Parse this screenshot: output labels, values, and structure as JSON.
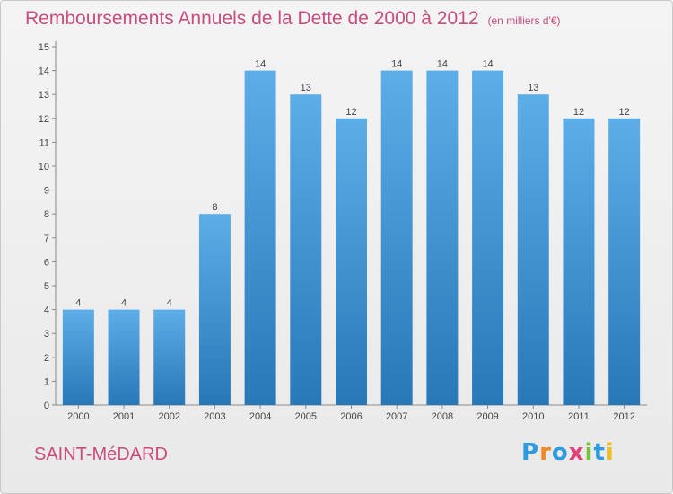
{
  "title": "Remboursements Annuels de la Dette de 2000 à 2012",
  "unit_note": "(en milliers d'€)",
  "commune": "SAINT-MéDARD",
  "logo": {
    "text": "Proxiti",
    "colors": [
      "#2e9be0",
      "#f08a24",
      "#2e9be0",
      "#e0407a",
      "#7cc043",
      "#2e9be0",
      "#f0c020"
    ]
  },
  "colors": {
    "bar_top": "#5dade8",
    "bar_bottom": "#2878b8",
    "accent": "#c94c7e"
  },
  "chart_data": {
    "type": "bar",
    "title": "Remboursements Annuels de la Dette de 2000 à 2012",
    "subtitle": "(en milliers d'€)",
    "categories": [
      "2000",
      "2001",
      "2002",
      "2003",
      "2004",
      "2005",
      "2006",
      "2007",
      "2008",
      "2009",
      "2010",
      "2011",
      "2012"
    ],
    "values": [
      4,
      4,
      4,
      8,
      14,
      13,
      12,
      14,
      14,
      14,
      13,
      12,
      12
    ],
    "ylim": [
      0,
      15
    ],
    "yticks": [
      0,
      1,
      2,
      3,
      4,
      5,
      6,
      7,
      8,
      9,
      10,
      11,
      12,
      13,
      14,
      15
    ],
    "xlabel": "",
    "ylabel": "",
    "grid": false,
    "legend": "none"
  }
}
